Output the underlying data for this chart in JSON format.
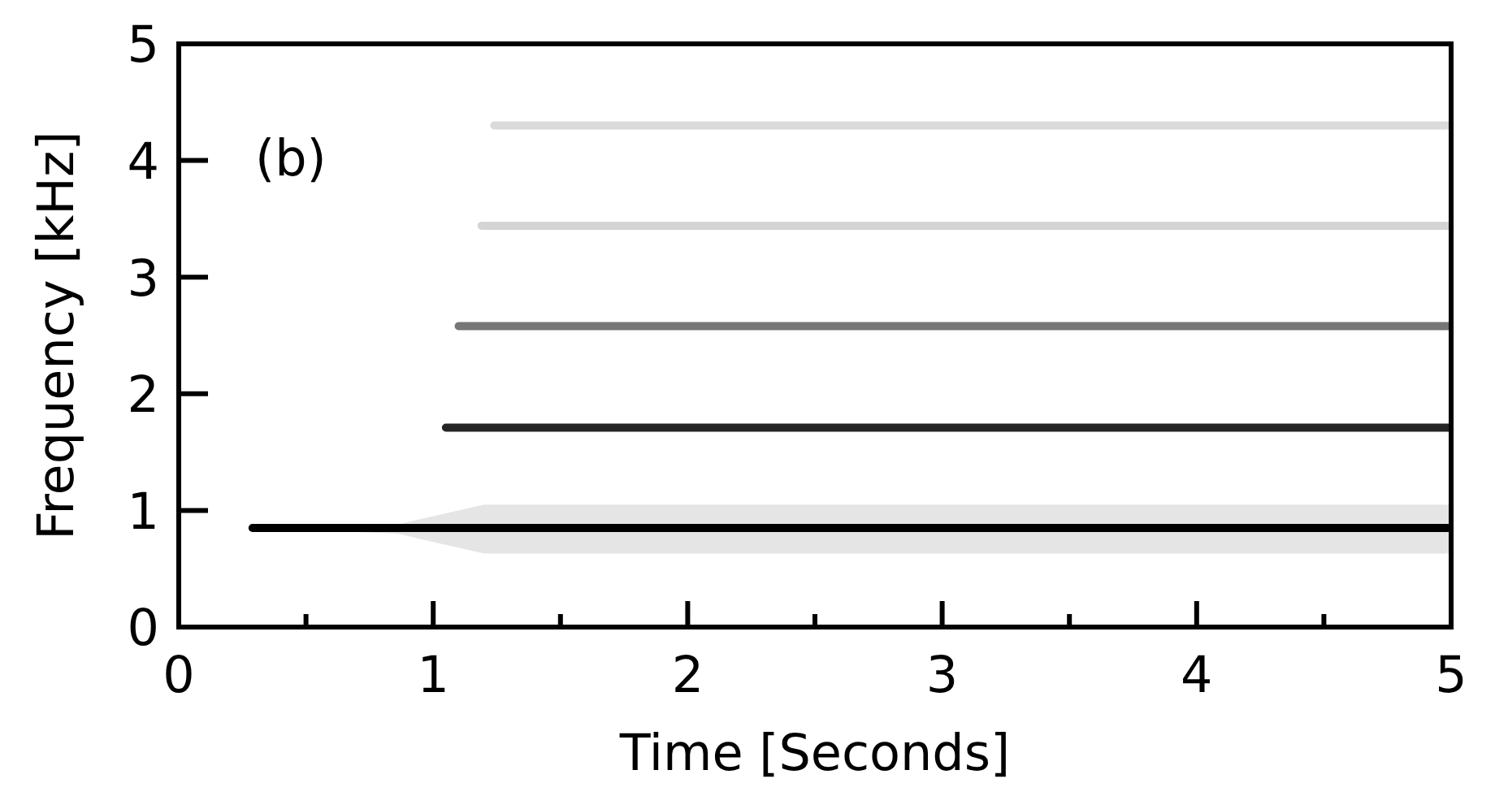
{
  "chart_data": {
    "type": "line",
    "xlabel": "Time [Seconds]",
    "ylabel": "Frequency [kHz]",
    "annotations": [
      "(b)"
    ],
    "xlim": [
      0,
      5
    ],
    "ylim": [
      0,
      5
    ],
    "xticks": [
      0,
      {
        "value": 0.5,
        "label": null
      },
      1,
      {
        "value": 1.5,
        "label": null
      },
      2,
      {
        "value": 2.5,
        "label": null
      },
      3,
      {
        "value": 3.5,
        "label": null
      },
      4,
      {
        "value": 4.5,
        "label": null
      },
      5
    ],
    "yticks": [
      0,
      1,
      2,
      3,
      4,
      5
    ],
    "grid": false,
    "marker": "none",
    "line_style": "solid",
    "series": [
      {
        "color": "#000000",
        "x": [
          0.29,
          0.86,
          1.2,
          5
        ],
        "values": [
          0.85,
          0.85,
          0.85,
          0.85
        ],
        "lower": [
          0.85,
          0.8,
          0.63,
          0.63
        ],
        "upper": [
          0.85,
          0.88,
          1.05,
          1.05
        ]
      },
      {
        "color": "#252525",
        "x": [
          1.05,
          5
        ],
        "values": [
          1.71,
          1.71
        ]
      },
      {
        "color": "#767676",
        "x": [
          1.1,
          5
        ],
        "values": [
          2.58,
          2.58
        ]
      },
      {
        "color": "#d4d4d4",
        "x": [
          1.19,
          5
        ],
        "values": [
          3.44,
          3.44
        ]
      },
      {
        "color": "#dadada",
        "x": [
          1.24,
          5
        ],
        "values": [
          4.3,
          4.3
        ]
      }
    ]
  }
}
